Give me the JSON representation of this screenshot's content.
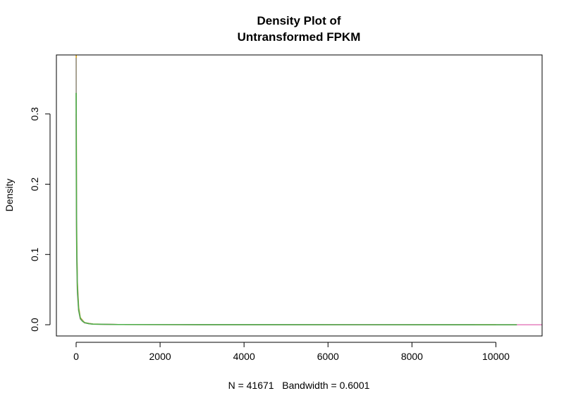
{
  "chart_data": {
    "type": "line",
    "title_line1": "Density Plot of",
    "title_line2": "Untransformed FPKM",
    "xlabel": "N = 41671   Bandwidth = 0.6001",
    "ylabel": "Density",
    "xlim": [
      -470,
      11100
    ],
    "ylim": [
      -0.016,
      0.384
    ],
    "x_ticks": [
      {
        "value": 0,
        "label": "0"
      },
      {
        "value": 2000,
        "label": "2000"
      },
      {
        "value": 4000,
        "label": "4000"
      },
      {
        "value": 6000,
        "label": "6000"
      },
      {
        "value": 8000,
        "label": "8000"
      },
      {
        "value": 10000,
        "label": "10000"
      }
    ],
    "y_ticks": [
      {
        "value": 0.0,
        "label": "0.0"
      },
      {
        "value": 0.1,
        "label": "0.1"
      },
      {
        "value": 0.2,
        "label": "0.2"
      },
      {
        "value": 0.3,
        "label": "0.3"
      }
    ],
    "grid": false,
    "series": [
      {
        "color": "#d4a017",
        "x": [
          0,
          2,
          4,
          8,
          15,
          30,
          60,
          100,
          200,
          400,
          1000,
          3000,
          10000
        ],
        "y": [
          0.45,
          0.4,
          0.3,
          0.2,
          0.12,
          0.06,
          0.025,
          0.01,
          0.003,
          0.001,
          0.0003,
          0.0001,
          0.0
        ]
      },
      {
        "color": "#999999",
        "x": [
          0,
          2,
          4,
          8,
          15,
          30,
          60,
          100,
          200,
          400,
          1000,
          3000,
          9500
        ],
        "y": [
          0.38,
          0.33,
          0.26,
          0.18,
          0.11,
          0.055,
          0.022,
          0.009,
          0.0028,
          0.0009,
          0.0003,
          0.0001,
          0.0
        ]
      },
      {
        "color": "#e78ac3",
        "x": [
          0,
          2,
          4,
          8,
          15,
          30,
          60,
          100,
          200,
          400,
          1000,
          3000,
          6000,
          11100
        ],
        "y": [
          0.3,
          0.25,
          0.2,
          0.14,
          0.09,
          0.045,
          0.02,
          0.008,
          0.0025,
          0.0008,
          0.0003,
          0.0001,
          3e-05,
          0.0
        ]
      },
      {
        "color": "#4daf4a",
        "x": [
          0,
          2,
          4,
          8,
          15,
          30,
          60,
          100,
          150,
          200,
          300,
          400,
          1000,
          3000,
          10500
        ],
        "y": [
          0.33,
          0.29,
          0.23,
          0.16,
          0.1,
          0.05,
          0.021,
          0.009,
          0.005,
          0.003,
          0.0015,
          0.0009,
          0.0003,
          0.0001,
          0.0
        ]
      }
    ]
  }
}
